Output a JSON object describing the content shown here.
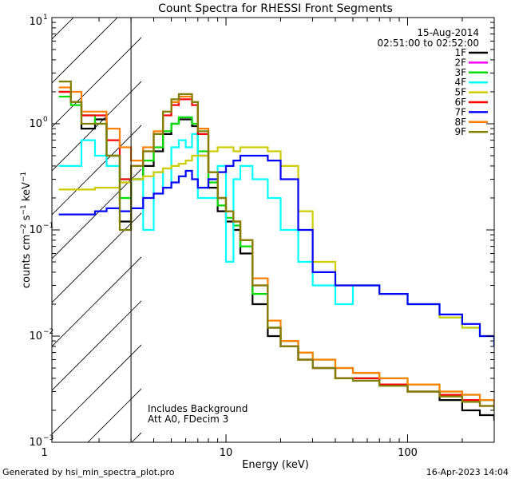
{
  "chart_data": {
    "type": "line",
    "title": "Count Spectra for RHESSI Front Segments",
    "xlabel": "Energy (keV)",
    "ylabel": {
      "main": "counts cm",
      "exp1": "−2",
      "mid": " s",
      "exp2": "−1",
      "tail": " keV",
      "exp3": "−1"
    },
    "x_scale": "log",
    "y_scale": "log",
    "xlim": [
      1.1,
      300
    ],
    "ylim": [
      0.001,
      10
    ],
    "x_ticks": [
      {
        "value": 1,
        "label": "1"
      },
      {
        "value": 10,
        "label": "10"
      },
      {
        "value": 100,
        "label": "100"
      }
    ],
    "y_ticks": [
      {
        "value": 0.001,
        "base": "10",
        "exp": "−3"
      },
      {
        "value": 0.01,
        "base": "10",
        "exp": "−2"
      },
      {
        "value": 0.1,
        "base": "10",
        "exp": "−1"
      },
      {
        "value": 1,
        "base": "10",
        "exp": "0"
      },
      {
        "value": 10,
        "base": "10",
        "exp": "1"
      }
    ],
    "excluded_region": {
      "from_keV": 1.1,
      "to_keV": 3.0
    },
    "date": "15-Aug-2014",
    "time_range": "02:51:00 to 02:52:00",
    "annotations": [
      "Includes Background",
      "Att A0, FDecim 3"
    ],
    "footer_left": "Generated by hsi_min_spectra_plot.pro",
    "footer_right": "16-Apr-2023 14:04",
    "series": [
      {
        "name": "1F",
        "color": "#000000",
        "x": [
          1.2,
          1.4,
          1.6,
          1.9,
          2.2,
          2.6,
          3.0,
          3.5,
          4.0,
          4.5,
          5.0,
          5.5,
          6.0,
          6.5,
          7.0,
          8.0,
          9.0,
          10,
          11,
          12,
          14,
          17,
          20,
          25,
          30,
          40,
          50,
          70,
          100,
          150,
          200,
          250,
          300
        ],
        "y": [
          2.0,
          1.6,
          0.9,
          1.1,
          0.5,
          0.12,
          0.3,
          0.4,
          0.55,
          0.8,
          1.0,
          1.1,
          1.1,
          0.95,
          0.5,
          0.25,
          0.15,
          0.12,
          0.1,
          0.06,
          0.02,
          0.01,
          0.008,
          0.006,
          0.005,
          0.004,
          0.004,
          0.0035,
          0.003,
          0.0025,
          0.002,
          0.0018,
          0.0016
        ]
      },
      {
        "name": "2F",
        "color": "#ff00ff",
        "x": [],
        "y": []
      },
      {
        "name": "3F",
        "color": "#00dd00",
        "x": [
          1.2,
          1.4,
          1.6,
          1.9,
          2.2,
          2.6,
          3.0,
          3.5,
          4.0,
          4.5,
          5.0,
          5.5,
          6.0,
          6.5,
          7.0,
          8.0,
          9.0,
          10,
          11,
          12,
          14,
          17,
          20,
          25,
          30,
          40,
          50,
          70,
          100,
          150,
          200,
          250,
          300
        ],
        "y": [
          1.8,
          1.5,
          1.2,
          1.0,
          0.5,
          0.2,
          0.3,
          0.45,
          0.6,
          0.85,
          1.0,
          1.15,
          1.15,
          1.0,
          0.55,
          0.28,
          0.17,
          0.13,
          0.11,
          0.07,
          0.025,
          0.012,
          0.009,
          0.007,
          0.006,
          0.005,
          0.0045,
          0.004,
          0.0035,
          0.003,
          0.0028,
          0.0025,
          0.0022
        ]
      },
      {
        "name": "4F",
        "color": "#00ffff",
        "x": [
          1.2,
          1.4,
          1.6,
          1.9,
          2.2,
          2.6,
          3.0,
          3.5,
          4.0,
          4.5,
          5.0,
          5.5,
          6.0,
          6.5,
          7.0,
          8.0,
          9.0,
          10,
          11,
          12,
          14,
          17,
          20,
          25,
          30,
          40,
          50,
          70,
          100,
          150,
          200,
          250,
          300
        ],
        "y": [
          0.4,
          0.4,
          0.7,
          0.5,
          0.4,
          0.3,
          0.3,
          0.1,
          0.35,
          0.25,
          0.6,
          0.7,
          0.6,
          0.8,
          0.2,
          0.2,
          0.4,
          0.05,
          0.3,
          0.4,
          0.3,
          0.2,
          0.1,
          0.05,
          0.03,
          0.02,
          0.03,
          0.025,
          0.02,
          0.015,
          0.012,
          0.01,
          0.008
        ]
      },
      {
        "name": "5F",
        "color": "#cccc00",
        "x": [
          1.2,
          1.4,
          1.6,
          1.9,
          2.2,
          2.6,
          3.0,
          3.5,
          4.0,
          4.5,
          5.0,
          5.5,
          6.0,
          6.5,
          7.0,
          8.0,
          9.0,
          10,
          11,
          12,
          14,
          17,
          20,
          25,
          30,
          40,
          50,
          70,
          100,
          150,
          200,
          250,
          300
        ],
        "y": [
          0.24,
          0.24,
          0.24,
          0.25,
          0.25,
          0.28,
          0.3,
          0.32,
          0.35,
          0.38,
          0.4,
          0.42,
          0.45,
          0.5,
          0.5,
          0.55,
          0.6,
          0.6,
          0.55,
          0.6,
          0.6,
          0.55,
          0.4,
          0.15,
          0.05,
          0.03,
          0.03,
          0.025,
          0.02,
          0.015,
          0.012,
          0.01,
          0.01
        ]
      },
      {
        "name": "6F",
        "color": "#ff0000",
        "x": [
          1.2,
          1.4,
          1.6,
          1.9,
          2.2,
          2.6,
          3.0,
          3.5,
          4.0,
          4.5,
          5.0,
          5.5,
          6.0,
          6.5,
          7.0,
          8.0,
          9.0,
          10,
          11,
          12,
          14,
          17,
          20,
          25,
          30,
          40,
          50,
          70,
          100,
          150,
          200,
          250,
          300
        ],
        "y": [
          2.0,
          1.6,
          1.2,
          1.2,
          0.7,
          0.3,
          0.4,
          0.55,
          0.8,
          1.2,
          1.5,
          1.7,
          1.7,
          1.5,
          0.8,
          0.35,
          0.2,
          0.15,
          0.12,
          0.08,
          0.03,
          0.012,
          0.008,
          0.006,
          0.005,
          0.004,
          0.004,
          0.0035,
          0.003,
          0.0028,
          0.0025,
          0.0022,
          0.002
        ]
      },
      {
        "name": "7F",
        "color": "#0000ff",
        "x": [
          1.2,
          1.4,
          1.6,
          1.9,
          2.2,
          2.6,
          3.0,
          3.5,
          4.0,
          4.5,
          5.0,
          5.5,
          6.0,
          6.5,
          7.0,
          8.0,
          9.0,
          10,
          11,
          12,
          14,
          17,
          20,
          25,
          30,
          40,
          50,
          70,
          100,
          150,
          200,
          250,
          300
        ],
        "y": [
          0.14,
          0.14,
          0.14,
          0.15,
          0.16,
          0.15,
          0.16,
          0.2,
          0.22,
          0.25,
          0.28,
          0.32,
          0.36,
          0.3,
          0.25,
          0.3,
          0.35,
          0.4,
          0.45,
          0.5,
          0.5,
          0.45,
          0.3,
          0.1,
          0.04,
          0.03,
          0.03,
          0.025,
          0.02,
          0.016,
          0.013,
          0.01,
          0.008
        ]
      },
      {
        "name": "8F",
        "color": "#ff8000",
        "x": [
          1.2,
          1.4,
          1.6,
          1.9,
          2.2,
          2.6,
          3.0,
          3.5,
          4.0,
          4.5,
          5.0,
          5.5,
          6.0,
          6.5,
          7.0,
          8.0,
          9.0,
          10,
          11,
          12,
          14,
          17,
          20,
          25,
          30,
          40,
          50,
          70,
          100,
          150,
          200,
          250,
          300
        ],
        "y": [
          2.2,
          2.0,
          1.3,
          1.3,
          0.9,
          0.6,
          0.45,
          0.6,
          0.85,
          1.3,
          1.6,
          1.8,
          1.8,
          1.6,
          0.9,
          0.35,
          0.2,
          0.15,
          0.12,
          0.08,
          0.035,
          0.014,
          0.009,
          0.007,
          0.006,
          0.005,
          0.0045,
          0.004,
          0.0035,
          0.003,
          0.0028,
          0.0025,
          0.0022
        ]
      },
      {
        "name": "9F",
        "color": "#808000",
        "x": [
          1.2,
          1.4,
          1.6,
          1.9,
          2.2,
          2.6,
          3.0,
          3.5,
          4.0,
          4.5,
          5.0,
          5.5,
          6.0,
          6.5,
          7.0,
          8.0,
          9.0,
          10,
          11,
          12,
          14,
          17,
          20,
          25,
          30,
          40,
          50,
          70,
          100,
          150,
          200,
          250,
          300
        ],
        "y": [
          2.5,
          1.6,
          1.0,
          1.0,
          0.5,
          0.1,
          0.4,
          0.55,
          0.8,
          1.3,
          1.7,
          1.9,
          1.9,
          1.6,
          0.85,
          0.35,
          0.2,
          0.15,
          0.12,
          0.08,
          0.03,
          0.012,
          0.008,
          0.006,
          0.005,
          0.004,
          0.0038,
          0.0034,
          0.003,
          0.0027,
          0.0024,
          0.0022,
          0.002
        ]
      }
    ]
  }
}
